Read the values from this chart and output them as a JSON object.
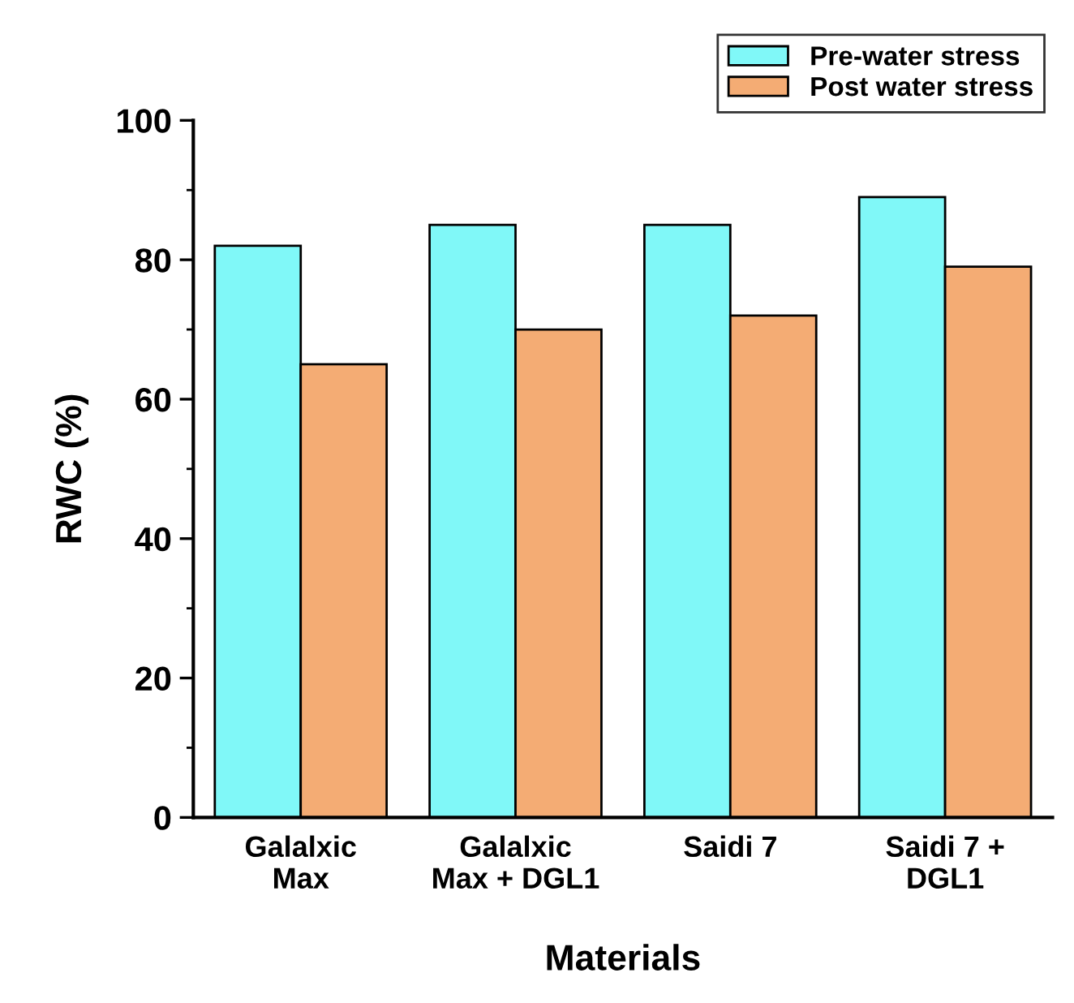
{
  "chart_data": {
    "type": "bar",
    "xlabel": "Materials",
    "ylabel": "RWC (%)",
    "categories": [
      "Galalxic\nMax",
      "Galalxic\nMax + DGL1",
      "Saidi 7",
      "Saidi 7 +\nDGL1"
    ],
    "series": [
      {
        "name": "Pre-water stress",
        "color": "#80f8f8",
        "values": [
          82,
          85,
          85,
          89
        ]
      },
      {
        "name": "Post water stress",
        "color": "#f4ac74",
        "values": [
          65,
          70,
          72,
          79
        ]
      }
    ],
    "ylim": [
      0,
      100
    ],
    "yticks": [
      0,
      {
        "value": 10,
        "label": null
      },
      20,
      {
        "value": 30,
        "label": null
      },
      40,
      {
        "value": 50,
        "label": null
      },
      60,
      {
        "value": 70,
        "label": null
      },
      80,
      {
        "value": 90,
        "label": null
      },
      100
    ],
    "legend": "top right",
    "grid": false
  }
}
